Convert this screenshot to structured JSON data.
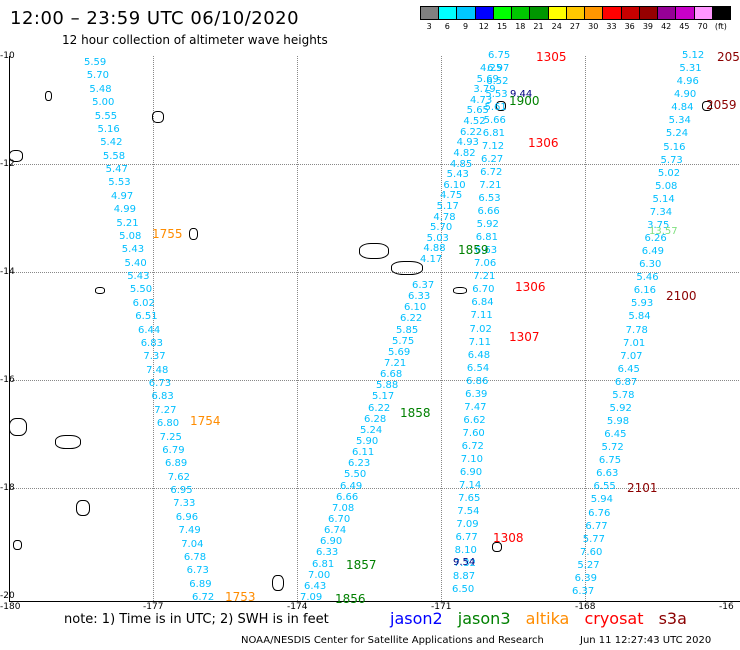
{
  "title": "12:00 – 23:59 UTC 06/10/2020",
  "subtitle": "12 hour collection of altimeter wave heights",
  "scale": {
    "labels": [
      "3",
      "6",
      "9",
      "12",
      "15",
      "18",
      "21",
      "24",
      "27",
      "30",
      "33",
      "36",
      "39",
      "42",
      "45",
      "70",
      "(ft)"
    ],
    "colors": [
      "#808080",
      "#00ffff",
      "#00c8ff",
      "#0000ff",
      "#00ff00",
      "#00c800",
      "#009600",
      "#ffff00",
      "#ffc800",
      "#ff9600",
      "#ff0000",
      "#c80000",
      "#960000",
      "#960096",
      "#c800c8",
      "#ff96ff",
      "#000000"
    ]
  },
  "lat_labels": [
    "-10",
    "-12",
    "-14",
    "-16",
    "-18",
    "-20"
  ],
  "lon_labels": [
    "-180",
    "-177",
    "-174",
    "-171",
    "-168",
    "-16"
  ],
  "colors": {
    "jason2": "#00bfff",
    "jason3": "#008000",
    "altika": "#ff8c00",
    "cryosat": "#ff0000",
    "s3a": "#8b0000",
    "jason2_legend": "#0000ff",
    "dark_blue": "#000080",
    "light_green": "#80e080"
  },
  "tracks": {
    "track1": {
      "color": "#00bfff",
      "values": [
        "5.59",
        "5.70",
        "5.48",
        "5.00",
        "5.55",
        "5.16",
        "5.42",
        "5.58",
        "5.47",
        "5.53",
        "4.97",
        "4.99",
        "5.21",
        "5.08",
        "5.43",
        "5.40",
        "5.43",
        "5.50",
        "6.02",
        "6.51",
        "6.44",
        "6.83",
        "7.37",
        "7.48",
        "6.73",
        "6.83",
        "7.27",
        "6.80",
        "7.25",
        "6.79",
        "6.89",
        "7.62",
        "6.95",
        "7.33",
        "6.96",
        "7.49",
        "7.04",
        "6.78",
        "6.73",
        "6.89",
        "6.72"
      ]
    },
    "track2": {
      "color": "#00bfff",
      "values": [
        "6.37",
        "6.33",
        "6.10",
        "6.22",
        "5.85",
        "5.75",
        "5.69",
        "7.21",
        "6.68",
        "5.88",
        "5.17",
        "6.22",
        "6.28",
        "5.24",
        "5.90",
        "6.11",
        "6.23",
        "5.50",
        "6.49",
        "6.66",
        "7.08",
        "6.70",
        "6.74",
        "6.90",
        "6.33",
        "6.81",
        "7.00",
        "6.43",
        "7.09"
      ]
    },
    "track3a": {
      "color": "#00bfff",
      "values": [
        "4.25",
        "5.69",
        "3.79",
        "4.73",
        "5.65",
        "4.52",
        "6.22",
        "4.93",
        "4.82",
        "4.85",
        "5.43",
        "6.10",
        "4.75",
        "5.17",
        "4.78",
        "5.70",
        "5.03",
        "4.88",
        "4.17"
      ]
    },
    "track3b": {
      "color": "#00bfff",
      "values": [
        "6.75",
        "6.97",
        "6.52",
        "5.53",
        "5.61",
        "5.66",
        "6.81",
        "7.12",
        "6.27",
        "6.72",
        "7.21",
        "6.53",
        "6.66",
        "5.92",
        "6.81",
        "6.63",
        "7.06",
        "7.21",
        "6.70",
        "6.84",
        "7.11",
        "7.02",
        "7.11",
        "6.48",
        "6.54",
        "6.86",
        "6.39",
        "7.47",
        "6.62",
        "7.60",
        "6.72",
        "7.10",
        "6.90",
        "7.14",
        "7.65",
        "7.54",
        "7.09",
        "6.77",
        "8.10",
        "7.32",
        "8.87",
        "6.50"
      ]
    },
    "track4": {
      "color": "#00bfff",
      "values": [
        "5.12",
        "5.31",
        "4.96",
        "4.90",
        "4.84",
        "5.34",
        "5.24",
        "5.16",
        "5.73",
        "5.02",
        "5.08",
        "5.14",
        "7.34",
        "3.75",
        "6.26",
        "6.49",
        "6.30",
        "5.46",
        "6.16",
        "5.93",
        "5.84",
        "7.78",
        "7.01",
        "7.07",
        "6.45",
        "6.87",
        "5.78",
        "5.92",
        "5.98",
        "6.45",
        "5.72",
        "6.75",
        "6.63",
        "6.55",
        "5.94",
        "6.76",
        "6.77",
        "5.77",
        "7.60",
        "5.27",
        "6.39",
        "6.37"
      ]
    }
  },
  "special_values": {
    "v944": "9.44",
    "v954": "9.54",
    "v1357": "13.57"
  },
  "times": {
    "t1305": "1305",
    "t1900": "1900",
    "t2059": "2059",
    "t205": "205",
    "t1306a": "1306",
    "t1755": "1755",
    "t1859": "1859",
    "t1306b": "1306",
    "t2100": "2100",
    "t1307": "1307",
    "t1754": "1754",
    "t1858": "1858",
    "t2101": "2101",
    "t1308": "1308",
    "t1857": "1857",
    "t1753": "1753",
    "t1856": "1856"
  },
  "note": "note:  1) Time is in UTC;  2) SWH is in feet",
  "legend": {
    "jason2": "jason2",
    "jason3": "jason3",
    "altika": "altika",
    "cryosat": "cryosat",
    "s3a": "s3a"
  },
  "footer": "NOAA/NESDIS Center for Satellite Applications and Research",
  "footer_date": "Jun 11 12:27:43 UTC 2020"
}
